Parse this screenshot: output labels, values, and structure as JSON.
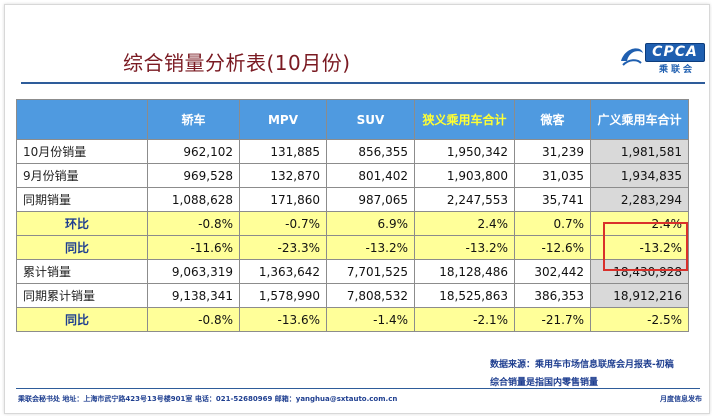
{
  "title": "综合销量分析表(10月份)",
  "logo": {
    "mark": "CPCA",
    "sub": "乘联会"
  },
  "table": {
    "headers": [
      "",
      "轿车",
      "MPV",
      "SUV",
      "狭义乘用车合计",
      "微客",
      "广义乘用车合计"
    ],
    "highlight_header": "狭义乘用车合计",
    "rows": [
      {
        "label": "10月份销量",
        "values": [
          "962,102",
          "131,885",
          "856,355",
          "1,950,342",
          "31,239",
          "1,981,581"
        ]
      },
      {
        "label": "9月份销量",
        "values": [
          "969,528",
          "132,870",
          "801,402",
          "1,903,800",
          "31,035",
          "1,934,835"
        ]
      },
      {
        "label": "同期销量",
        "values": [
          "1,088,628",
          "171,860",
          "987,065",
          "2,247,553",
          "35,741",
          "2,283,294"
        ]
      },
      {
        "label": "环比",
        "values": [
          "-0.8%",
          "-0.7%",
          "6.9%",
          "2.4%",
          "0.7%",
          "2.4%"
        ]
      },
      {
        "label": "同比",
        "values": [
          "-11.6%",
          "-23.3%",
          "-13.2%",
          "-13.2%",
          "-12.6%",
          "-13.2%"
        ]
      },
      {
        "label": "累计销量",
        "values": [
          "9,063,319",
          "1,363,642",
          "7,701,525",
          "18,128,486",
          "302,442",
          "18,430,928"
        ]
      },
      {
        "label": "同期累计销量",
        "values": [
          "9,138,341",
          "1,578,990",
          "7,808,532",
          "18,525,863",
          "386,353",
          "18,912,216"
        ]
      },
      {
        "label": "同比",
        "values": [
          "-0.8%",
          "-13.6%",
          "-1.4%",
          "-2.1%",
          "-21.7%",
          "-2.5%"
        ]
      }
    ]
  },
  "source": "数据来源：乘用车市场信息联席会月报表-初稿",
  "note": "综合销量是指国内零售销量",
  "footer": {
    "left": "乘联会秘书处  地址：上海市武宁路423号13号楼901室  电话：021-52680969  邮箱：yanghua@sxtauto.com.cn",
    "right": "月度信息发布"
  },
  "colors": {
    "header_bg": "#4f9ae0",
    "pct_row_bg": "#ffff99",
    "total_col_bg": "#d9d9d9",
    "title": "#7a1a22",
    "highlight_box": "#d9302b"
  }
}
